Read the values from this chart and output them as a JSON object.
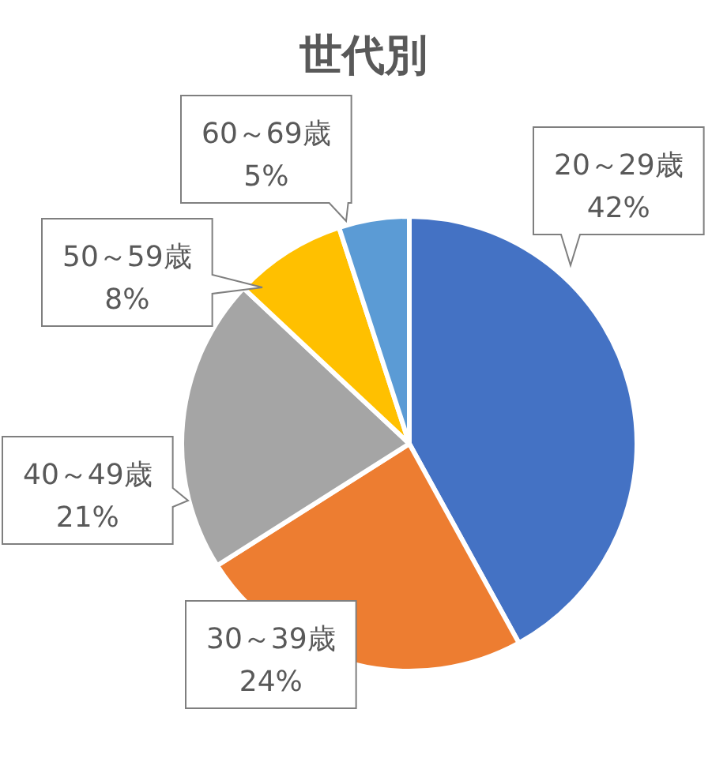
{
  "chart_data": {
    "type": "pie",
    "title": "世代別",
    "categories": [
      "20～29歳",
      "30～39歳",
      "40～49歳",
      "50～59歳",
      "60～69歳"
    ],
    "values": [
      42,
      24,
      21,
      8,
      5
    ],
    "value_labels": [
      "42%",
      "24%",
      "21%",
      "8%",
      "5%"
    ],
    "colors": [
      "#4472c4",
      "#ed7d31",
      "#a5a5a5",
      "#ffc000",
      "#5b9bd5"
    ]
  }
}
